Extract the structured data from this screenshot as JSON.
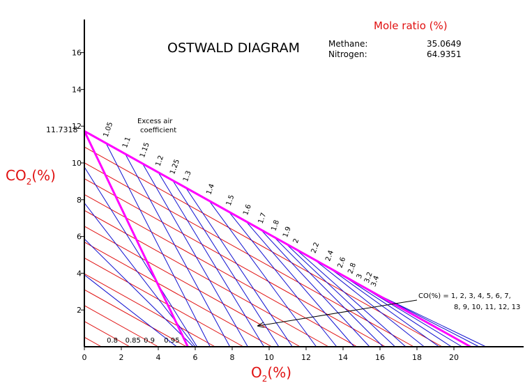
{
  "chart_data": {
    "type": "line",
    "title": "OSTWALD DIAGRAM",
    "xlabel_main": "O",
    "xlabel_sub": "2",
    "xlabel_tail": "(%)",
    "ylabel_main": "CO",
    "ylabel_sub": "2",
    "ylabel_tail": "(%)",
    "xlim": [
      0,
      24
    ],
    "ylim": [
      0,
      17.8
    ],
    "x_ticks": [
      0,
      2,
      4,
      6,
      8,
      10,
      12,
      14,
      16,
      18,
      20
    ],
    "y_ticks": [
      2,
      4,
      6,
      8,
      10,
      12,
      14,
      16
    ],
    "co2_max": 11.7318,
    "co2_max_label": "11.7318",
    "o2_max": 20.9,
    "boundary_lines": [
      {
        "name": "complete-combustion",
        "from": [
          0,
          11.7318
        ],
        "to": [
          20.9,
          0
        ]
      },
      {
        "name": "stoichiometric",
        "from": [
          0,
          11.7318
        ],
        "to": [
          5.6,
          0
        ]
      }
    ],
    "excess_air_label": "Excess air coefficient",
    "excess_air_label_line1": "Excess air",
    "excess_air_label_line2": "coefficient",
    "excess_air_coefficients": [
      {
        "label": "1.05",
        "o2": 1.17
      },
      {
        "label": "1.1",
        "o2": 2.21
      },
      {
        "label": "1.15",
        "o2": 3.15
      },
      {
        "label": "1.2",
        "o2": 4.0
      },
      {
        "label": "1.25",
        "o2": 4.78
      },
      {
        "label": "1.3",
        "o2": 5.49
      },
      {
        "label": "1.4",
        "o2": 6.75
      },
      {
        "label": "1.5",
        "o2": 7.82
      },
      {
        "label": "1.6",
        "o2": 8.74
      },
      {
        "label": "1.7",
        "o2": 9.55
      },
      {
        "label": "1.8",
        "o2": 10.26
      },
      {
        "label": "1.9",
        "o2": 10.89
      },
      {
        "label": "2",
        "o2": 11.45
      },
      {
        "label": "2.2",
        "o2": 12.42
      },
      {
        "label": "2.4",
        "o2": 13.2
      },
      {
        "label": "2.6",
        "o2": 13.85
      },
      {
        "label": "2.8",
        "o2": 14.41
      },
      {
        "label": "3",
        "o2": 14.88
      },
      {
        "label": "3.2",
        "o2": 15.3
      },
      {
        "label": "3.4",
        "o2": 15.66
      }
    ],
    "sub_stoich_coefficients": [
      {
        "label": "0.8",
        "o2": 1.1
      },
      {
        "label": "0.85",
        "o2": 2.1
      },
      {
        "label": "0.9",
        "o2": 3.1
      },
      {
        "label": "0.95",
        "o2": 4.2
      }
    ],
    "co_lines_count": 13,
    "co_note_line1": "CO(%) = 1, 2, 3, 4, 5, 6, 7,",
    "co_note_line2": "8, 9, 10, 11, 12, 13",
    "co_note_arrow_to": [
      9.3,
      1.1
    ]
  },
  "mole_ratio": {
    "title": "Mole ratio (%)",
    "rows": [
      {
        "name": "Methane:",
        "value": "35.0649"
      },
      {
        "name": "Nitrogen:",
        "value": "64.9351"
      }
    ]
  },
  "colors": {
    "magenta": "#ff00ff",
    "blue": "#1010d0",
    "red": "#e01010",
    "axis": "#000000"
  }
}
